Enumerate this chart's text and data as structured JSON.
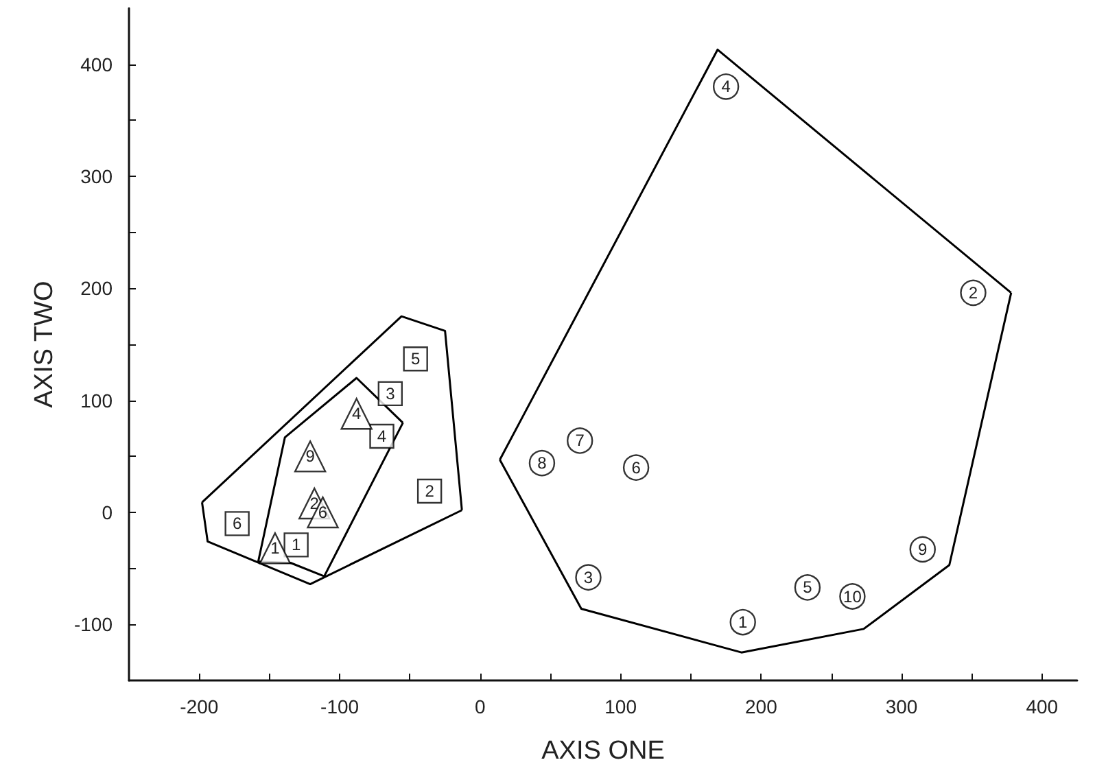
{
  "chart_data": {
    "type": "scatter",
    "xlabel": "AXIS ONE",
    "ylabel": "AXIS TWO",
    "xlim": [
      -250,
      425
    ],
    "ylim": [
      -150,
      450
    ],
    "xticks": [
      -200,
      {
        "value": -150,
        "label": null
      },
      -100,
      {
        "value": -50,
        "label": null
      },
      0,
      {
        "value": 50,
        "label": null
      },
      100,
      {
        "value": 150,
        "label": null
      },
      200,
      {
        "value": 250,
        "label": null
      },
      300,
      {
        "value": 350,
        "label": null
      },
      400
    ],
    "yticks": [
      -100,
      {
        "value": -50,
        "label": null
      },
      0,
      {
        "value": 50,
        "label": null
      },
      100,
      {
        "value": 150,
        "label": null
      },
      200,
      {
        "value": 250,
        "label": null
      },
      300,
      {
        "value": 350,
        "label": null
      },
      400
    ],
    "grid": false,
    "series": [
      {
        "type": "line",
        "color": "#000000",
        "marker": "none",
        "x": [
          -198,
          -56,
          -25,
          -13
        ],
        "values": [
          9,
          175,
          162,
          2
        ]
      },
      {
        "type": "line",
        "color": "#000000",
        "marker": "none",
        "x": [
          -198,
          -194,
          -121,
          -13
        ],
        "values": [
          9,
          -26,
          -64,
          2
        ]
      },
      {
        "type": "line",
        "color": "#000000",
        "marker": "none",
        "x": [
          -158,
          -139,
          -88,
          -55
        ],
        "values": [
          -44,
          67,
          120,
          80
        ]
      },
      {
        "type": "line",
        "color": "#000000",
        "marker": "none",
        "x": [
          -158,
          -135,
          -111,
          -55
        ],
        "values": [
          -44,
          -45,
          -57,
          80
        ]
      },
      {
        "type": "line",
        "color": "#000000",
        "marker": "none",
        "x": [
          14,
          169,
          378
        ],
        "values": [
          47,
          413,
          196
        ]
      },
      {
        "type": "line",
        "color": "#000000",
        "marker": "none",
        "x": [
          14,
          72,
          186,
          273,
          334,
          378
        ],
        "values": [
          47,
          -86,
          -125,
          -104,
          -47,
          196
        ]
      },
      {
        "color": "#000000",
        "marker": "square",
        "x": [
          -131,
          -36,
          -64,
          -70,
          -46,
          -173
        ],
        "values": [
          -29,
          19,
          106,
          68,
          137,
          -10
        ]
      },
      {
        "color": "#000000",
        "marker": "triangle",
        "x": [
          -146,
          -118,
          -112,
          -88,
          -121
        ],
        "values": [
          -32,
          8,
          0,
          88,
          50
        ]
      },
      {
        "color": "#000000",
        "marker": "circle",
        "x": [
          187,
          351,
          77,
          175,
          233,
          111,
          71,
          44,
          315,
          265
        ],
        "values": [
          -98,
          196,
          -58,
          380,
          -67,
          40,
          64,
          44,
          -33,
          -75
        ]
      }
    ],
    "annotations": [
      {
        "text": "1",
        "x": -131,
        "y": -29
      },
      {
        "text": "2",
        "x": -36,
        "y": 19
      },
      {
        "text": "3",
        "x": -64,
        "y": 106
      },
      {
        "text": "4",
        "x": -70,
        "y": 68
      },
      {
        "text": "5",
        "x": -46,
        "y": 137
      },
      {
        "text": "6",
        "x": -173,
        "y": -10
      },
      {
        "text": "1",
        "x": -146,
        "y": -32
      },
      {
        "text": "2",
        "x": -118,
        "y": 8
      },
      {
        "text": "6",
        "x": -112,
        "y": 0
      },
      {
        "text": "4",
        "x": -88,
        "y": 88
      },
      {
        "text": "9",
        "x": -121,
        "y": 50
      },
      {
        "text": "1",
        "x": 187,
        "y": -98
      },
      {
        "text": "2",
        "x": 351,
        "y": 196
      },
      {
        "text": "3",
        "x": 77,
        "y": -58
      },
      {
        "text": "4",
        "x": 175,
        "y": 380
      },
      {
        "text": "5",
        "x": 233,
        "y": -67
      },
      {
        "text": "6",
        "x": 111,
        "y": 40
      },
      {
        "text": "7",
        "x": 71,
        "y": 64
      },
      {
        "text": "8",
        "x": 44,
        "y": 44
      },
      {
        "text": "9",
        "x": 315,
        "y": -33
      },
      {
        "text": "10",
        "x": 265,
        "y": -75
      }
    ]
  }
}
